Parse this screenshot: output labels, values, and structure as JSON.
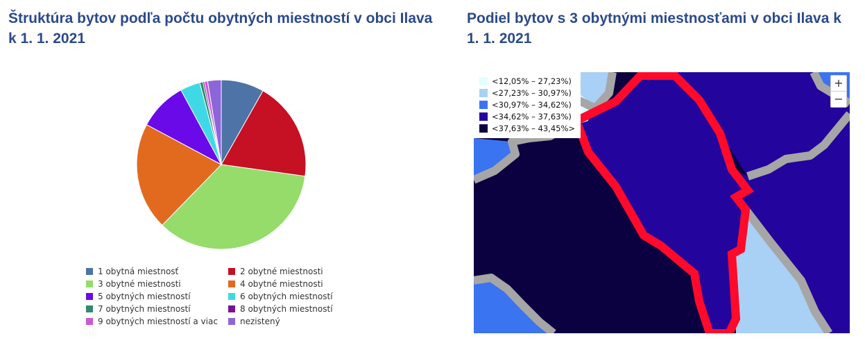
{
  "left_panel": {
    "title": "Štruktúra bytov podľa počtu obytných miestností v obci Ilava k 1. 1. 2021"
  },
  "right_panel": {
    "title": "Podiel bytov s 3 obytnými miestnosťami v obci Ilava k 1. 1. 2021",
    "map_legend": [
      {
        "label": "<12,05% – 27,23%)",
        "color": "#e1fdff"
      },
      {
        "label": "<27,23% – 30,97%)",
        "color": "#a9d0f5"
      },
      {
        "label": "<30,97% – 34,62%)",
        "color": "#3b74f0"
      },
      {
        "label": "<34,62% – 37,63%)",
        "color": "#23049c"
      },
      {
        "label": "<37,63% – 43,45%>",
        "color": "#0b0040"
      }
    ],
    "zoom_in_label": "+",
    "zoom_out_label": "−"
  },
  "chart_data": {
    "type": "pie",
    "title": "Štruktúra bytov podľa počtu obytných miestností v obci Ilava k 1. 1. 2021",
    "unit": "%",
    "start_angle_deg": 0,
    "categories": [
      "1 obytná miestnosť",
      "2 obytné miestnosti",
      "3 obytné miestnosti",
      "4 obytné miestnosti",
      "5 obytných miestností",
      "6 obytných miestností",
      "7 obytných miestností",
      "8 obytných miestností",
      "9 obytných miestností a viac",
      "nezistený"
    ],
    "values": [
      8.2,
      19.0,
      35.1,
      20.5,
      9.3,
      3.8,
      0.6,
      0.3,
      0.6,
      2.6
    ],
    "colors": [
      "#4e73a6",
      "#c61024",
      "#95dc6b",
      "#e26a1f",
      "#6b0ae8",
      "#3fd9e6",
      "#2e8b6c",
      "#7a1296",
      "#c85ad8",
      "#8c66d9"
    ],
    "legend_position": "bottom"
  }
}
